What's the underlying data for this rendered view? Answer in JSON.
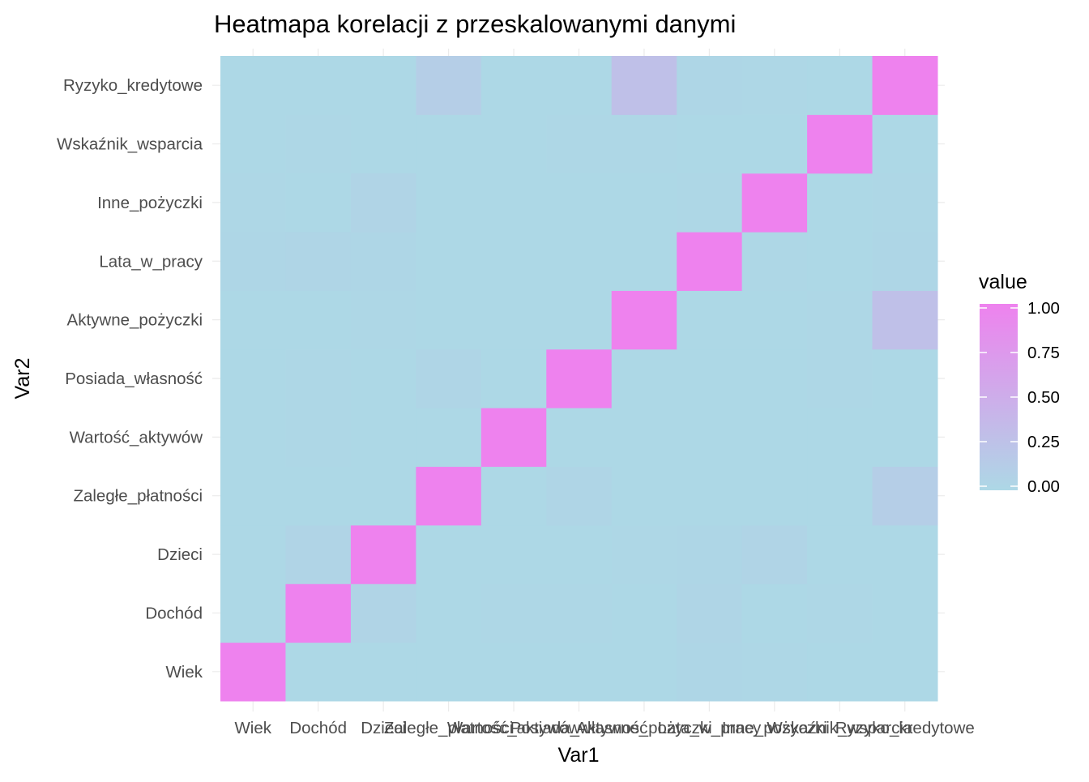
{
  "chart_data": {
    "type": "heatmap",
    "title": "Heatmapa korelacji z przeskalowanymi danymi",
    "xlabel": "Var1",
    "ylabel": "Var2",
    "variables": [
      "Wiek",
      "Dochód",
      "Dzieci",
      "Zaległe_płatności",
      "Wartość_aktywów",
      "Posiada_własność",
      "Aktywne_pożyczki",
      "Lata_w_pracy",
      "Inne_pożyczki",
      "Wskaźnik_wsparcia",
      "Ryzyko_kredytowe"
    ],
    "matrix": [
      [
        1.0,
        0.0,
        0.0,
        0.0,
        0.0,
        0.0,
        0.0,
        0.02,
        0.01,
        0.0,
        0.0
      ],
      [
        0.0,
        1.0,
        0.05,
        0.0,
        0.01,
        0.01,
        0.0,
        0.03,
        0.0,
        0.01,
        0.0
      ],
      [
        0.0,
        0.05,
        1.0,
        0.0,
        0.0,
        0.0,
        0.01,
        0.02,
        0.05,
        0.0,
        0.0
      ],
      [
        0.0,
        0.0,
        0.0,
        1.0,
        0.0,
        0.03,
        0.0,
        0.0,
        0.0,
        0.0,
        0.12
      ],
      [
        0.0,
        0.01,
        0.0,
        0.0,
        1.0,
        0.0,
        0.0,
        0.0,
        0.0,
        0.0,
        0.0
      ],
      [
        0.0,
        0.01,
        0.0,
        0.03,
        0.0,
        1.0,
        0.0,
        0.0,
        0.0,
        0.01,
        0.0
      ],
      [
        0.0,
        0.0,
        0.01,
        0.0,
        0.0,
        0.0,
        1.0,
        0.0,
        0.0,
        0.01,
        0.28
      ],
      [
        0.02,
        0.03,
        0.02,
        0.0,
        0.0,
        0.0,
        0.0,
        1.0,
        0.01,
        0.0,
        0.02
      ],
      [
        0.01,
        0.0,
        0.05,
        0.0,
        0.0,
        0.0,
        0.0,
        0.01,
        1.0,
        0.0,
        0.01
      ],
      [
        0.0,
        0.01,
        0.0,
        0.0,
        0.0,
        0.01,
        0.01,
        0.0,
        0.0,
        1.0,
        0.0
      ],
      [
        0.0,
        0.0,
        0.0,
        0.12,
        0.0,
        0.0,
        0.28,
        0.02,
        0.01,
        0.0,
        1.0
      ]
    ],
    "color_low": "#add8e6",
    "color_high": "#ee82ee",
    "value_range": [
      0,
      1
    ],
    "legend": {
      "title": "value",
      "ticks": [
        1.0,
        0.75,
        0.5,
        0.25,
        0.0
      ],
      "tick_labels": [
        "1.00",
        "0.75",
        "0.50",
        "0.25",
        "0.00"
      ],
      "placement": "right"
    },
    "grid": true
  }
}
